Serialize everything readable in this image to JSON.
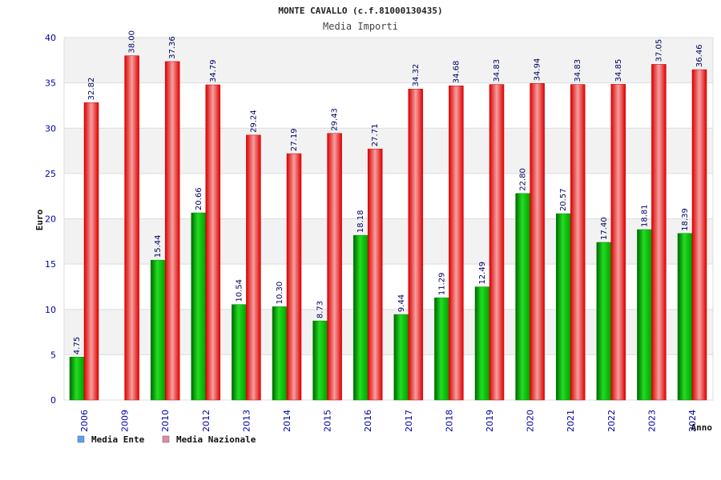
{
  "chart_data": {
    "type": "bar",
    "title": "MONTE CAVALLO (c.f.81000130435)",
    "subtitle": "Media Importi",
    "xlabel": "Anno",
    "ylabel": "Euro",
    "ylim": [
      0,
      40
    ],
    "yticks": [
      0,
      5,
      10,
      15,
      20,
      25,
      30,
      35,
      40
    ],
    "grid": true,
    "legend_position": "bottom-left",
    "categories": [
      "2006",
      "2009",
      "2010",
      "2012",
      "2013",
      "2014",
      "2015",
      "2016",
      "2017",
      "2018",
      "2019",
      "2020",
      "2021",
      "2022",
      "2023",
      "2024"
    ],
    "series": [
      {
        "name": "Media Ente",
        "color": "#00b000",
        "legend_color": "#5aa0ee",
        "values": [
          4.75,
          null,
          15.44,
          20.66,
          10.54,
          10.3,
          8.73,
          18.18,
          9.44,
          11.29,
          12.49,
          22.8,
          20.57,
          17.4,
          18.81,
          18.39
        ],
        "labels": [
          "4.75",
          null,
          "15.44",
          "20.66",
          "10.54",
          "10.30",
          "8.73",
          "18.18",
          "9.44",
          "11.29",
          "12.49",
          "22.80",
          "20.57",
          "17.40",
          "18.81",
          "18.39"
        ]
      },
      {
        "name": "Media Nazionale",
        "color": "#ee1111",
        "legend_color": "#e088aa",
        "values": [
          32.82,
          38.0,
          37.36,
          34.79,
          29.24,
          27.19,
          29.43,
          27.71,
          34.32,
          34.68,
          34.83,
          34.94,
          34.83,
          34.85,
          37.05,
          36.46
        ],
        "labels": [
          "32.82",
          "38.00",
          "37.36",
          "34.79",
          "29.24",
          "27.19",
          "29.43",
          "27.71",
          "34.32",
          "34.68",
          "34.83",
          "34.94",
          "34.83",
          "34.85",
          "37.05",
          "36.46"
        ]
      }
    ]
  }
}
